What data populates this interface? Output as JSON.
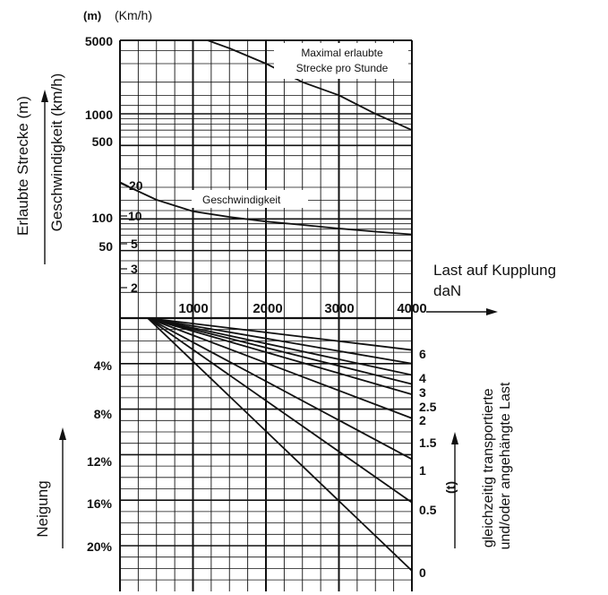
{
  "colors": {
    "ink": "#111111",
    "background": "#ffffff"
  },
  "chart_data": [
    {
      "type": "line",
      "title": "",
      "unit_labels": [
        "(m)",
        "(Km/h)"
      ],
      "ylabel_1": "Erlaubte Strecke (m)",
      "ylabel_2": "Geschwindigkeit (km/h)",
      "xlabel": "Last auf Kupplung",
      "xlabel_unit": "daN",
      "x_ticks": [
        "1000",
        "2000",
        "3000",
        "4000"
      ],
      "xlim": [
        0,
        4000
      ],
      "y_ticks_distance": [
        "5000",
        "1000",
        "500",
        "100",
        "50"
      ],
      "y_ticks_speed": [
        "20",
        "10",
        "5",
        "3",
        "2"
      ],
      "y_scale": "log",
      "grid": true,
      "annotations": [
        "Maximal erlaubte",
        "Strecke pro Stunde",
        "Geschwindigkeit"
      ],
      "series": [
        {
          "name": "Maximal erlaubte Strecke pro Stunde",
          "x": [
            1200,
            1500,
            2000,
            2500,
            3000,
            3500,
            4000
          ],
          "y": [
            5000,
            4200,
            3000,
            2000,
            1500,
            1000,
            700
          ]
        },
        {
          "name": "Geschwindigkeit",
          "x": [
            0,
            500,
            1000,
            1500,
            2000,
            2500,
            3000,
            3500,
            4000
          ],
          "y": [
            20,
            14,
            11,
            9.8,
            8.9,
            8.3,
            7.7,
            7.2,
            6.8
          ]
        }
      ]
    },
    {
      "type": "line",
      "title": "",
      "ylabel": "Neigung",
      "y_ticks": [
        "4%",
        "8%",
        "12%",
        "16%",
        "20%"
      ],
      "ylim": [
        0,
        23
      ],
      "xlim": [
        0,
        4000
      ],
      "right_label": "gleichzeitig transportierte und/oder angehängte Last",
      "right_unit": "(t)",
      "load_labels": [
        "6",
        "4",
        "3",
        "2.5",
        "2",
        "1.5",
        "1",
        "0.5",
        "0"
      ],
      "grid": true,
      "series": [
        {
          "name": "6",
          "x": [
            0,
            4000
          ],
          "y": [
            0,
            2.8
          ]
        },
        {
          "name": "4",
          "x": [
            0,
            4000
          ],
          "y": [
            0,
            4.0
          ]
        },
        {
          "name": "3",
          "x": [
            0,
            4000
          ],
          "y": [
            0,
            5.0
          ]
        },
        {
          "name": "2.5",
          "x": [
            0,
            4000
          ],
          "y": [
            0,
            5.8
          ]
        },
        {
          "name": "2",
          "x": [
            0,
            4000
          ],
          "y": [
            0,
            6.7
          ]
        },
        {
          "name": "1.5",
          "x": [
            0,
            4000
          ],
          "y": [
            0,
            8.8
          ]
        },
        {
          "name": "1",
          "x": [
            0,
            4000
          ],
          "y": [
            0,
            12.4
          ]
        },
        {
          "name": "0.5",
          "x": [
            0,
            4000
          ],
          "y": [
            0,
            16.2
          ]
        },
        {
          "name": "0",
          "x": [
            0,
            4000
          ],
          "y": [
            0,
            22.2
          ]
        }
      ]
    }
  ]
}
